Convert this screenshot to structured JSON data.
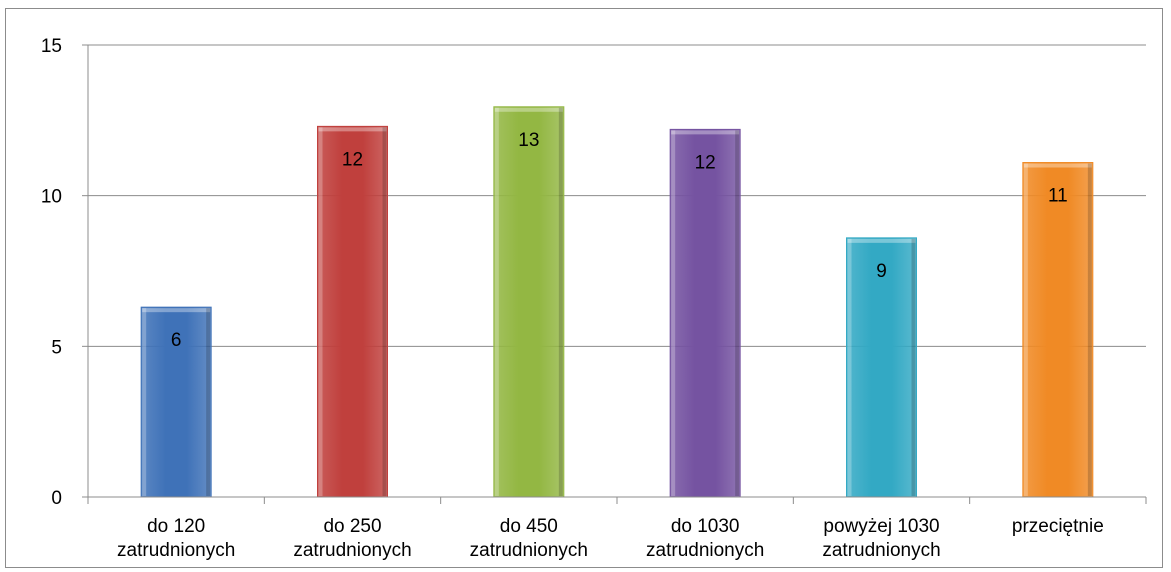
{
  "chart_data": {
    "type": "bar",
    "categories": [
      [
        "do 120",
        "zatrudnionych"
      ],
      [
        "do 250",
        "zatrudnionych"
      ],
      [
        "do 450",
        "zatrudnionych"
      ],
      [
        "do 1030",
        "zatrudnionych"
      ],
      [
        "powyżej 1030",
        "zatrudnionych"
      ],
      [
        "przeciętnie"
      ]
    ],
    "values": [
      6.3,
      12.3,
      12.95,
      12.2,
      8.6,
      11.1
    ],
    "data_labels": [
      "6",
      "12",
      "13",
      "12",
      "9",
      "11"
    ],
    "colors": [
      "#3f72b8",
      "#c0403d",
      "#93b743",
      "#7553a1",
      "#33a9c4",
      "#f08a25"
    ],
    "ylim": [
      0,
      15
    ],
    "yticks": [
      0,
      5,
      10,
      15
    ],
    "ytick_labels": [
      "0",
      "5",
      "10",
      "15"
    ],
    "grid": true,
    "legend": "none",
    "title": "",
    "xlabel": "",
    "ylabel": ""
  }
}
